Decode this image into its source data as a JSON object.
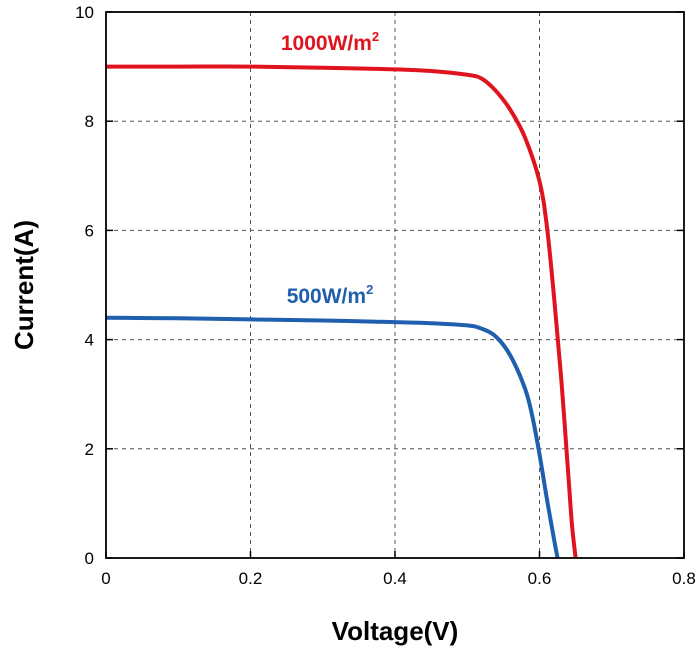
{
  "chart_data": {
    "type": "line",
    "xlabel": "Voltage(V)",
    "ylabel": "Current(A)",
    "xlim": [
      0,
      0.8
    ],
    "ylim": [
      0,
      10
    ],
    "xticks": [
      "0",
      "0.2",
      "0.4",
      "0.6",
      "0.8"
    ],
    "yticks": [
      "0",
      "2",
      "4",
      "6",
      "8",
      "10"
    ],
    "xtick_values": [
      0,
      0.2,
      0.4,
      0.6,
      0.8
    ],
    "ytick_values": [
      0,
      2,
      4,
      6,
      8,
      10
    ],
    "grid": true,
    "series": [
      {
        "name": "1000W/m2",
        "label_main": "1000W/m",
        "label_sup": "2",
        "color": "#e0141e",
        "x": [
          0,
          0.1,
          0.2,
          0.3,
          0.4,
          0.45,
          0.5,
          0.52,
          0.54,
          0.56,
          0.58,
          0.6,
          0.61,
          0.62,
          0.63,
          0.64,
          0.645,
          0.65
        ],
        "y": [
          9.0,
          9.0,
          9.0,
          8.98,
          8.95,
          8.92,
          8.85,
          8.78,
          8.55,
          8.2,
          7.7,
          6.9,
          6.1,
          4.8,
          3.3,
          1.5,
          0.6,
          0
        ]
      },
      {
        "name": "500W/m2",
        "label_main": "500W/m",
        "label_sup": "2",
        "color": "#1f5fae",
        "x": [
          0,
          0.1,
          0.2,
          0.3,
          0.4,
          0.45,
          0.5,
          0.52,
          0.54,
          0.56,
          0.58,
          0.59,
          0.6,
          0.61,
          0.62,
          0.625
        ],
        "y": [
          4.4,
          4.39,
          4.37,
          4.35,
          4.32,
          4.3,
          4.26,
          4.2,
          4.05,
          3.7,
          3.1,
          2.6,
          1.9,
          1.1,
          0.35,
          0
        ]
      }
    ]
  }
}
